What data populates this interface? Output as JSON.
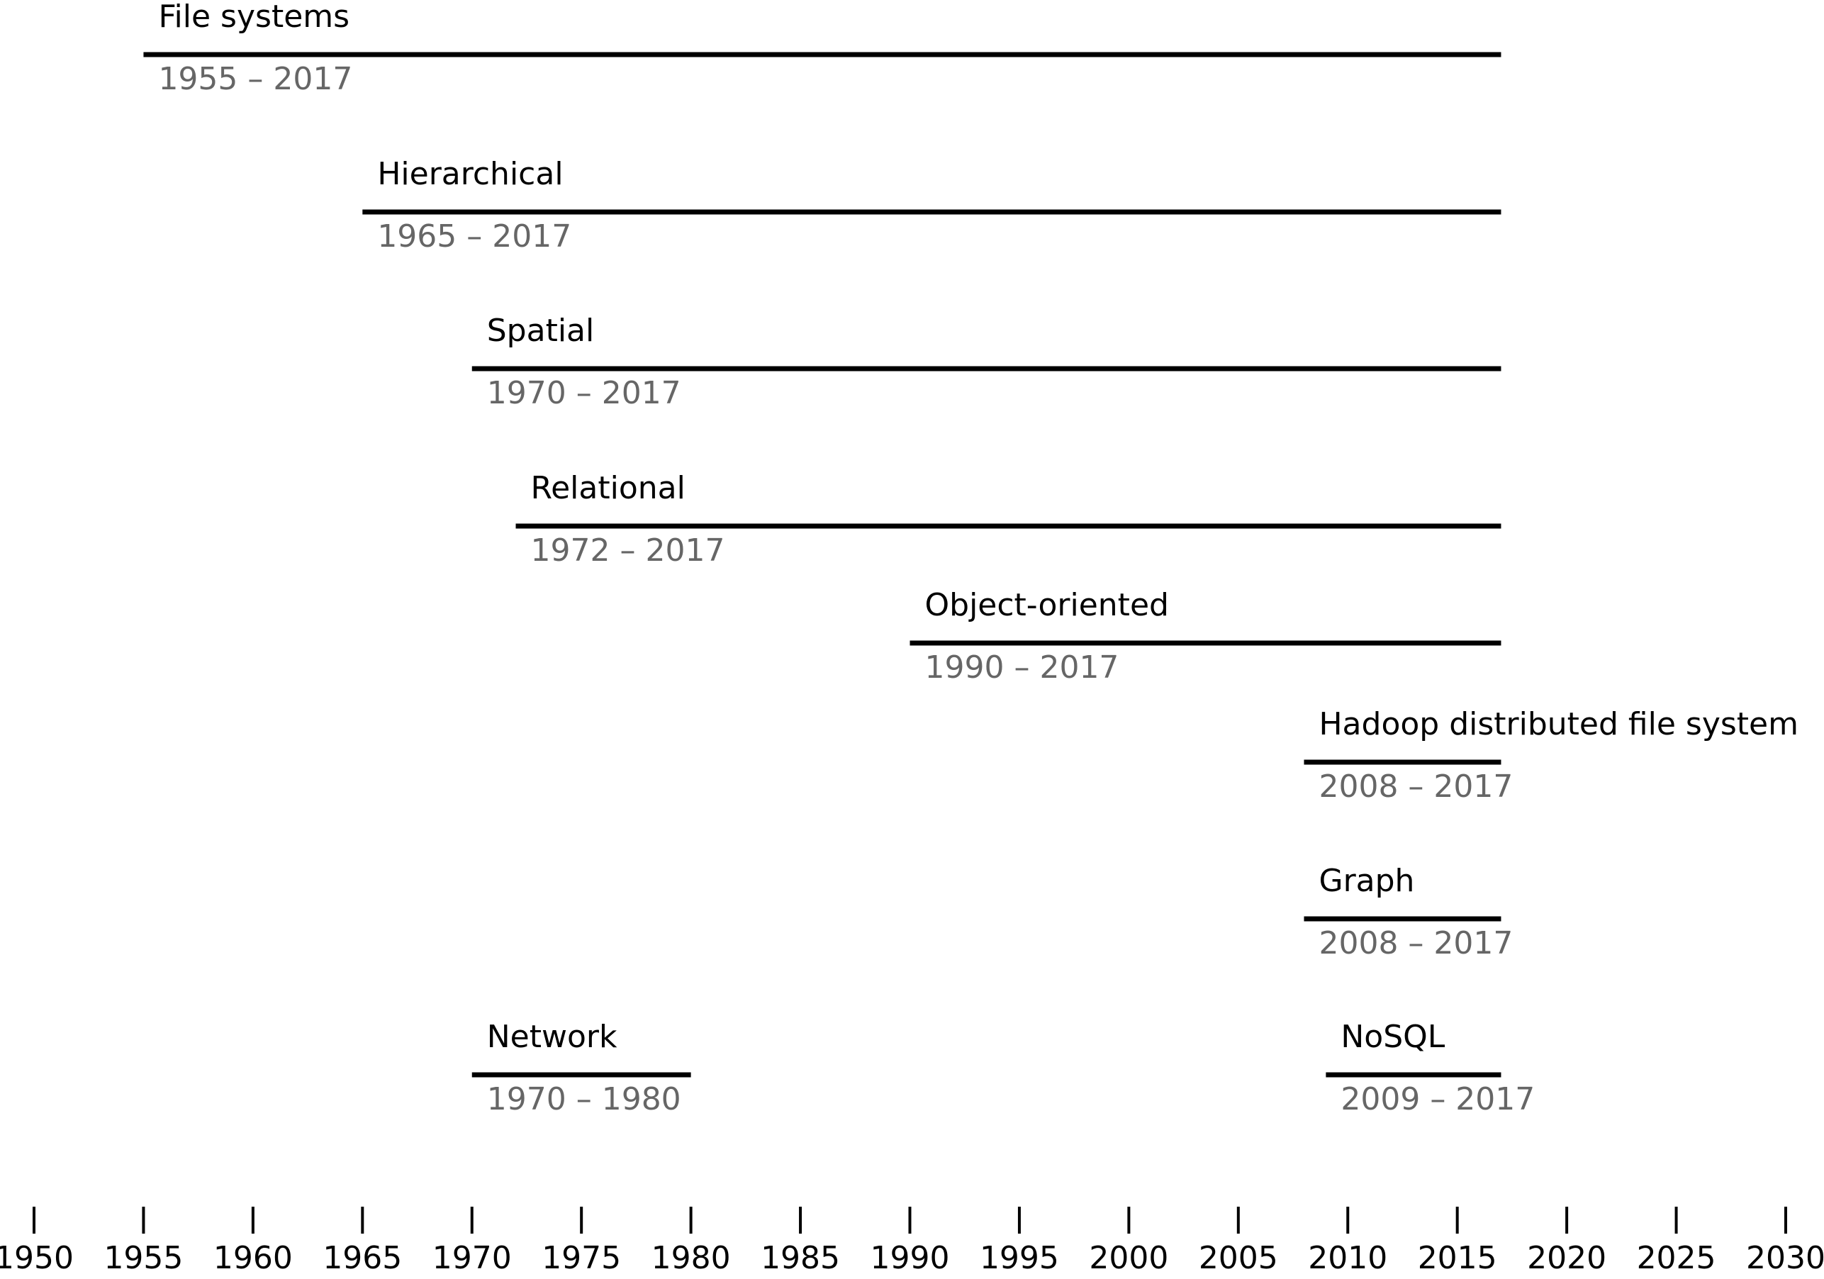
{
  "chart_data": {
    "type": "timeline",
    "items": [
      {
        "name": "File systems",
        "start": 1955,
        "end": 2017,
        "label": "1955 – 2017"
      },
      {
        "name": "Hierarchical",
        "start": 1965,
        "end": 2017,
        "label": "1965 – 2017"
      },
      {
        "name": "Spatial",
        "start": 1970,
        "end": 2017,
        "label": "1970 – 2017"
      },
      {
        "name": "Relational",
        "start": 1972,
        "end": 2017,
        "label": "1972 – 2017"
      },
      {
        "name": "Object-oriented",
        "start": 1990,
        "end": 2017,
        "label": "1990 – 2017"
      },
      {
        "name": "Hadoop distributed file system",
        "start": 2008,
        "end": 2017,
        "label": "2008 – 2017"
      },
      {
        "name": "Graph",
        "start": 2008,
        "end": 2017,
        "label": "2008 – 2017"
      },
      {
        "name": "Network",
        "start": 1970,
        "end": 1980,
        "label": "1970 – 1980"
      },
      {
        "name": "NoSQL",
        "start": 2009,
        "end": 2017,
        "label": "2009 – 2017"
      }
    ],
    "bar_color": "#000000",
    "range_label_color": "#666666",
    "xlim": [
      1950,
      2030
    ],
    "xticks": [
      1950,
      1955,
      1960,
      1965,
      1970,
      1975,
      1980,
      1985,
      1990,
      1995,
      2000,
      2005,
      2010,
      2015,
      2020,
      2025,
      2030
    ]
  }
}
